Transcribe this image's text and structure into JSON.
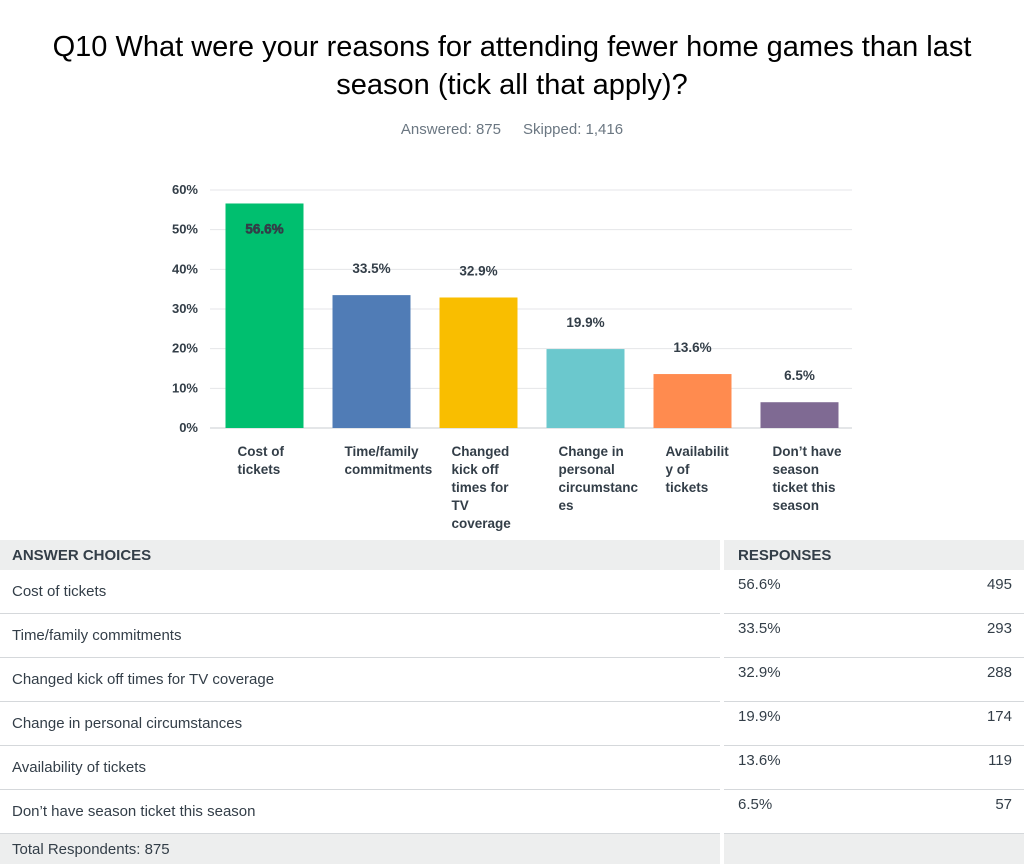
{
  "title_line1": "Q10 What were your reasons for attending fewer home games than last",
  "title_line2": "season (tick all that apply)?",
  "answered": "Answered: 875",
  "skipped": "Skipped: 1,416",
  "chart_data": {
    "type": "bar",
    "categories": [
      "Cost of tickets",
      "Time/family commitments",
      "Changed kick off times for TV coverage",
      "Change in personal circumstances",
      "Availability of tickets",
      "Don’t have season ticket this season"
    ],
    "category_label_lines": [
      [
        "Cost of",
        "tickets"
      ],
      [
        "Time/family",
        "commitments"
      ],
      [
        "Changed",
        "kick off",
        "times for",
        "TV",
        "coverage"
      ],
      [
        "Change in",
        "personal",
        "circumstanc",
        "es"
      ],
      [
        "Availabilit",
        "y of",
        "tickets"
      ],
      [
        "Don’t have",
        "season",
        "ticket this",
        "season"
      ]
    ],
    "values": [
      56.6,
      33.5,
      32.9,
      19.9,
      13.6,
      6.5
    ],
    "value_labels": [
      "56.6%",
      "33.5%",
      "32.9%",
      "19.9%",
      "13.6%",
      "6.5%"
    ],
    "colors": [
      "#00bf6f",
      "#507cb6",
      "#f9be00",
      "#6bc8cd",
      "#ff8b4f",
      "#7f6a93"
    ],
    "ylim": [
      0,
      60
    ],
    "yticks": [
      "0%",
      "10%",
      "20%",
      "30%",
      "40%",
      "50%",
      "60%"
    ],
    "grid": true
  },
  "table": {
    "header_choices": "ANSWER CHOICES",
    "header_responses": "RESPONSES",
    "rows": [
      {
        "label": "Cost of tickets",
        "pct": "56.6%",
        "count": "495"
      },
      {
        "label": "Time/family commitments",
        "pct": "33.5%",
        "count": "293"
      },
      {
        "label": "Changed kick off times for TV coverage",
        "pct": "32.9%",
        "count": "288"
      },
      {
        "label": "Change in personal circumstances",
        "pct": "19.9%",
        "count": "174"
      },
      {
        "label": "Availability of tickets",
        "pct": "13.6%",
        "count": "119"
      },
      {
        "label": "Don’t have season ticket this season",
        "pct": "6.5%",
        "count": "57"
      }
    ],
    "total": "Total Respondents: 875"
  }
}
